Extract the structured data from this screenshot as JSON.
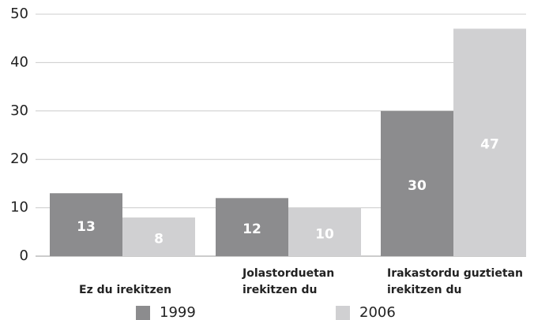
{
  "chart_data": {
    "type": "bar",
    "categories": [
      [
        "Ez du irekitzen"
      ],
      [
        "Jolastorduetan",
        "irekitzen du"
      ],
      [
        "Irakastordu guztietan",
        "irekitzen du"
      ]
    ],
    "series": [
      {
        "name": "1999",
        "color": "#8c8c8e",
        "values": [
          13,
          12,
          30
        ]
      },
      {
        "name": "2006",
        "color": "#d0d0d2",
        "values": [
          8,
          10,
          47
        ]
      }
    ],
    "ylim": [
      0,
      50
    ],
    "yticks": [
      0,
      10,
      20,
      30,
      40,
      50
    ],
    "grid": true,
    "legend": "bottom"
  }
}
